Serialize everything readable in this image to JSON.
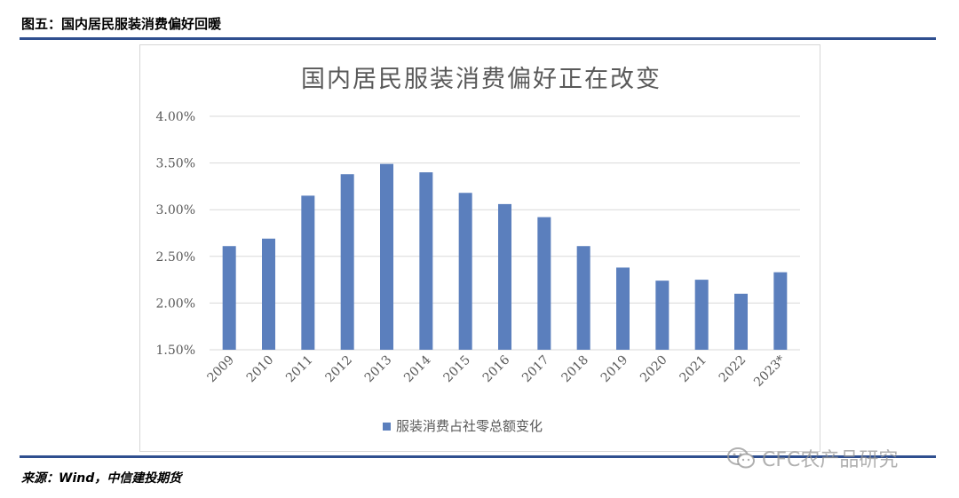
{
  "caption": "图五：国内居民服装消费偏好回暖",
  "source": "来源：Wind，中信建投期货",
  "watermark": {
    "text": "CFC农产品研究",
    "icon": "wechat-icon"
  },
  "colors": {
    "bar": "#5b7fbd",
    "rule": "#2f4f8f",
    "grid": "#d9d9d9",
    "text": "#595959"
  },
  "chart_data": {
    "type": "bar",
    "title": "国内居民服装消费偏好正在改变",
    "categories": [
      "2009",
      "2010",
      "2011",
      "2012",
      "2013",
      "2014",
      "2015",
      "2016",
      "2017",
      "2018",
      "2019",
      "2020",
      "2021",
      "2022",
      "2023*"
    ],
    "series": [
      {
        "name": "服装消费占社零总额变化",
        "values": [
          2.61,
          2.69,
          3.15,
          3.38,
          3.49,
          3.4,
          3.18,
          3.06,
          2.92,
          2.61,
          2.38,
          2.24,
          2.25,
          2.1,
          2.33
        ]
      }
    ],
    "yticks": [
      "4.00%",
      "3.50%",
      "3.00%",
      "2.50%",
      "2.00%",
      "1.50%"
    ],
    "ylim": [
      1.5,
      4.0
    ],
    "grid": true,
    "legend": "bottom"
  }
}
